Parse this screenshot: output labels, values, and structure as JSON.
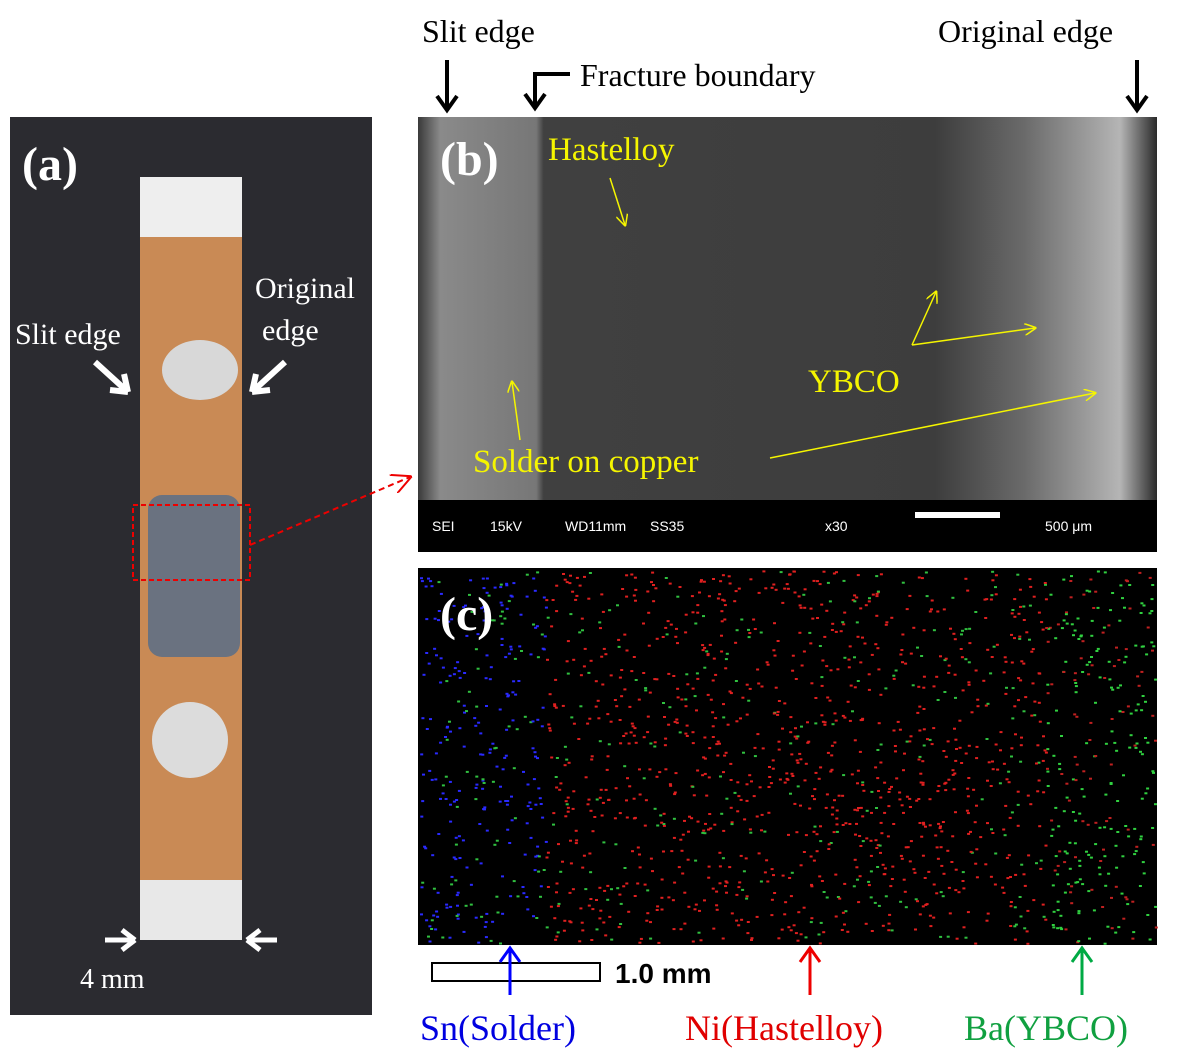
{
  "panel_a": {
    "label": "(a)",
    "original_edge": [
      "Original",
      "edge"
    ],
    "slit_edge": "Slit edge",
    "width": "4 mm"
  },
  "panel_b": {
    "label": "(b)",
    "slit_edge": "Slit edge",
    "fracture_boundary": "Fracture boundary",
    "original_edge": "Original edge",
    "hastelloy": "Hastelloy",
    "ybco": "YBCO",
    "solder": "Solder on copper",
    "sem_info": [
      "SEI",
      "15kV",
      "WD11mm",
      "SS35",
      "x30",
      "500 μm"
    ]
  },
  "panel_c": {
    "label": "(c)",
    "scale": "1.0 mm",
    "sn": "Sn(Solder)",
    "ni": "Ni(Hastelloy)",
    "ba": "Ba(YBCO)"
  }
}
